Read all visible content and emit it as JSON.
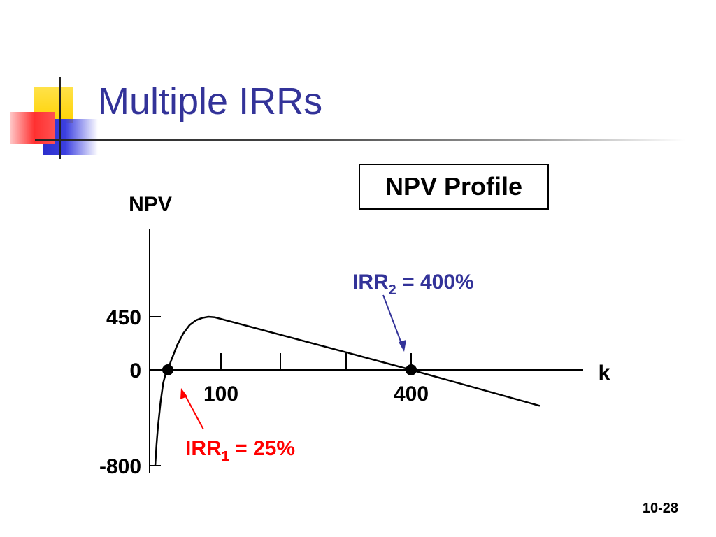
{
  "slide": {
    "title": "Multiple IRRs",
    "page_number": "10-28"
  },
  "chart_data": {
    "type": "line",
    "title": "NPV Profile",
    "ylabel": "NPV",
    "xlabel": "k",
    "ylim": [
      -800,
      450
    ],
    "y_ticks": [
      {
        "value": 450,
        "label": "450"
      },
      {
        "value": 0,
        "label": "0"
      },
      {
        "value": -800,
        "label": "-800"
      }
    ],
    "x_ticks": [
      {
        "value": 100,
        "label": "100"
      },
      {
        "value": 200,
        "label": ""
      },
      {
        "value": 300,
        "label": ""
      },
      {
        "value": 400,
        "label": "400"
      }
    ],
    "series": [
      {
        "x": [
          6,
          8,
          10,
          14,
          18,
          22,
          25,
          30,
          40,
          50,
          60,
          70,
          80,
          90,
          100,
          200,
          300,
          400,
          500
        ],
        "y": [
          -800,
          -620,
          -480,
          -270,
          -110,
          -25,
          0,
          75,
          210,
          310,
          380,
          420,
          440,
          450,
          445,
          298,
          150,
          0,
          -300
        ]
      }
    ],
    "annotations": [
      {
        "label": "IRR",
        "sub": "2",
        "text": " = 400%",
        "x": 400,
        "y": 0,
        "color": "#333399"
      },
      {
        "label": "IRR",
        "sub": "1",
        "text": " = 25%",
        "x": 25,
        "y": 0,
        "color": "#ff0000"
      }
    ]
  }
}
